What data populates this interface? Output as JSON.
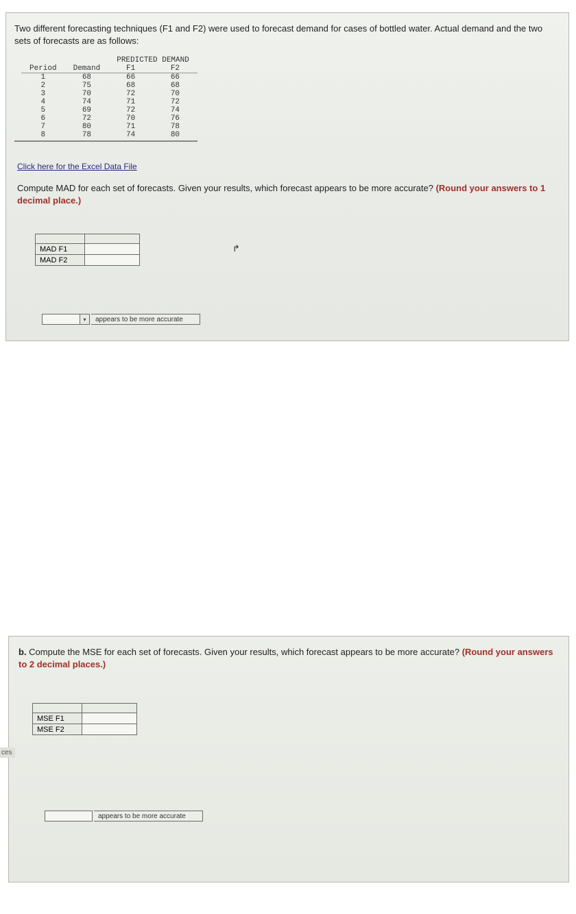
{
  "intro": "Two different forecasting techniques (F1 and F2) were used to forecast demand for cases of bottled water. Actual demand and the two sets of forecasts are as follows:",
  "table": {
    "predicted_header": "PREDICTED DEMAND",
    "columns": [
      "Period",
      "Demand",
      "F1",
      "F2"
    ],
    "rows": [
      [
        "1",
        "68",
        "66",
        "66"
      ],
      [
        "2",
        "75",
        "68",
        "68"
      ],
      [
        "3",
        "70",
        "72",
        "70"
      ],
      [
        "4",
        "74",
        "71",
        "72"
      ],
      [
        "5",
        "69",
        "72",
        "74"
      ],
      [
        "6",
        "72",
        "70",
        "76"
      ],
      [
        "7",
        "80",
        "71",
        "78"
      ],
      [
        "8",
        "78",
        "74",
        "80"
      ]
    ]
  },
  "excel_link": "Click here for the Excel Data File",
  "part_a": {
    "text_pre": "Compute MAD for each set of forecasts. Given your results, which forecast appears to be more accurate? ",
    "text_bold": "(Round your answers to 1 decimal place.)",
    "row1": "MAD F1",
    "row2": "MAD F2"
  },
  "part_b": {
    "prefix": "b. ",
    "text_pre": "Compute the MSE for each set of forecasts. Given your results, which forecast appears to be more accurate? ",
    "text_bold": "(Round your answers to 2 decimal places.)",
    "row1": "MSE F1",
    "row2": "MSE F2"
  },
  "accuracy_suffix": "appears to be more accurate",
  "side_tab": "ces",
  "colors": {
    "panel_bg": "#eef0ed",
    "bold_red": "#a03028",
    "border": "#6a6a6a"
  }
}
